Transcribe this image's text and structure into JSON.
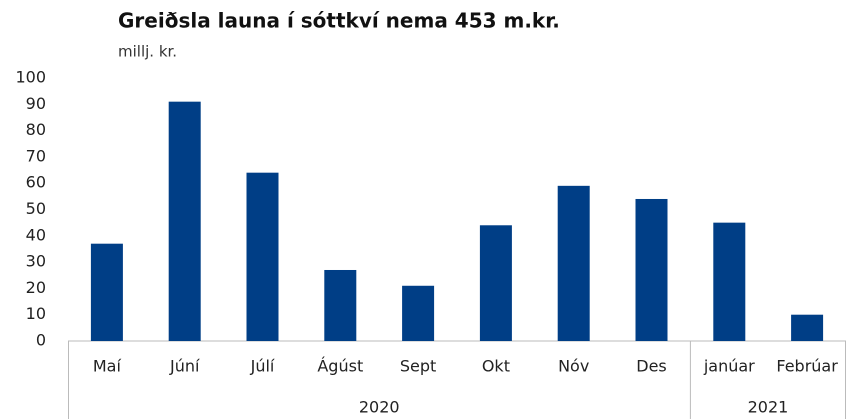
{
  "chart_data": {
    "type": "bar",
    "title": "Greiðsla launa í sóttkví nema 453 m.kr.",
    "subtitle": "millj. kr.",
    "categories": [
      "Maí",
      "Júní",
      "Júlí",
      "Ágúst",
      "Sept",
      "Okt",
      "Nóv",
      "Des",
      "janúar",
      "Febrúar"
    ],
    "values": [
      37,
      91,
      64,
      27,
      21,
      44,
      59,
      54,
      45,
      10
    ],
    "groups": [
      {
        "label": "2020",
        "span": 8
      },
      {
        "label": "2021",
        "span": 2
      }
    ],
    "color": "#003e86",
    "ylim": [
      0,
      100
    ],
    "yticks": [
      0,
      10,
      20,
      30,
      40,
      50,
      60,
      70,
      80,
      90,
      100
    ],
    "grid": false
  }
}
